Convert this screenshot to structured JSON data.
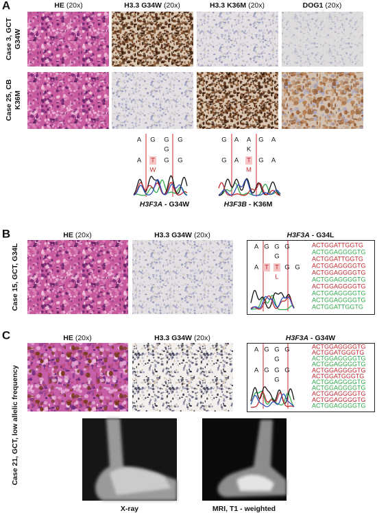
{
  "panel_a": {
    "label": "A",
    "headers": [
      {
        "name": "HE",
        "mag": "(20x)"
      },
      {
        "name": "H3.3 G34W",
        "mag": "(20x)"
      },
      {
        "name": "H3.3 K36M",
        "mag": "(20x)"
      },
      {
        "name": "DOG1",
        "mag": "(20x)"
      }
    ],
    "row_labels": [
      [
        "Case 3, GCT",
        "G34W"
      ],
      [
        "Case 25, CB",
        "K36M"
      ]
    ],
    "chromatograms": [
      {
        "rows": [
          [
            "A",
            "G",
            "G",
            "G"
          ],
          [
            null,
            null,
            "G",
            null
          ],
          [
            "A",
            "T",
            "G",
            "G"
          ],
          [
            null,
            "W",
            null,
            null
          ]
        ],
        "highlight": [
          1
        ],
        "gene": "H3F3A",
        "variant": "- G34W"
      },
      {
        "rows": [
          [
            "G",
            "A",
            "A",
            "G",
            "A"
          ],
          [
            null,
            null,
            "K",
            null,
            null
          ],
          [
            "G",
            "A",
            "T",
            "G",
            "A"
          ],
          [
            null,
            null,
            "M",
            null,
            null
          ]
        ],
        "highlight": [
          2
        ],
        "gene": "H3F3B",
        "variant": "- K36M"
      }
    ]
  },
  "panel_b": {
    "label": "B",
    "headers": [
      {
        "name": "HE",
        "mag": "(20x)"
      },
      {
        "name": "H3.3 G34W",
        "mag": "(20x)"
      }
    ],
    "sequencing_header": {
      "gene": "H3F3A",
      "variant": "- G34L"
    },
    "row_label": "Case 15, GCT, G34L",
    "chromatogram": {
      "rows": [
        [
          "A",
          "G",
          "G",
          "G"
        ],
        [
          null,
          null,
          "G",
          null
        ],
        [
          "A",
          "T",
          "T",
          "G",
          "G"
        ],
        [
          null,
          null,
          "L",
          null,
          null
        ]
      ],
      "highlight": [
        1,
        2
      ]
    },
    "sequences": [
      {
        "text": "ACTGGATTGGTG",
        "color": "#c0282d"
      },
      {
        "text": "ACTGGAGGGGTG",
        "color": "#2fa84a"
      },
      {
        "text": "ACTGGATTGGTG",
        "color": "#c0282d"
      },
      {
        "text": "ACTGGAGGGGTG",
        "color": "#c0282d"
      },
      {
        "text": "ACTGGAGGGGTG",
        "color": "#c0282d"
      },
      {
        "text": "ACTGGAGGGGTG",
        "color": "#2fa84a"
      },
      {
        "text": "ACTGGAGGGGTG",
        "color": "#c0282d"
      },
      {
        "text": "ACTGGAGGGGTG",
        "color": "#2fa84a"
      },
      {
        "text": "ACTGGAGGGGTG",
        "color": "#2fa84a"
      },
      {
        "text": "ACTGGATTGGTG",
        "color": "#2fa84a"
      }
    ]
  },
  "panel_c": {
    "label": "C",
    "headers": [
      {
        "name": "HE",
        "mag": "(20x)"
      },
      {
        "name": "H3.3 G34W",
        "mag": "(20x)"
      }
    ],
    "sequencing_header": {
      "gene": "H3F3A",
      "variant": "- G34W"
    },
    "row_label": "Case 21, GCT, low allelic frequency",
    "chromatogram": {
      "rows": [
        [
          "A",
          "G",
          "G",
          "G"
        ],
        [
          null,
          null,
          "G",
          null
        ],
        [
          "A",
          "G",
          "G",
          "G"
        ],
        [
          null,
          null,
          "G",
          null
        ]
      ],
      "highlight": []
    },
    "sequences": [
      {
        "text": "ACTGGAGGGGTG",
        "color": "#c0282d"
      },
      {
        "text": "ACTGGATGGGTG",
        "color": "#c0282d"
      },
      {
        "text": "ACTGGAGGGGTG",
        "color": "#2fa84a"
      },
      {
        "text": "ACTGGAGGGGTG",
        "color": "#2fa84a"
      },
      {
        "text": "ACTGGAGGGGTG",
        "color": "#c0282d"
      },
      {
        "text": "ACTGGATGGGTG",
        "color": "#c0282d"
      },
      {
        "text": "ACTGGAGGGGTG",
        "color": "#2fa84a"
      },
      {
        "text": "ACTGGAGGGGTG",
        "color": "#2fa84a"
      },
      {
        "text": "ACTGGAGGGGTG",
        "color": "#c0282d"
      },
      {
        "text": "ACTGGAGGGGTG",
        "color": "#c0282d"
      },
      {
        "text": "ACTGGAGGGGTG",
        "color": "#2fa84a"
      }
    ],
    "imaging": [
      {
        "caption": "X-ray"
      },
      {
        "caption": "MRI, T1 - weighted"
      }
    ]
  }
}
